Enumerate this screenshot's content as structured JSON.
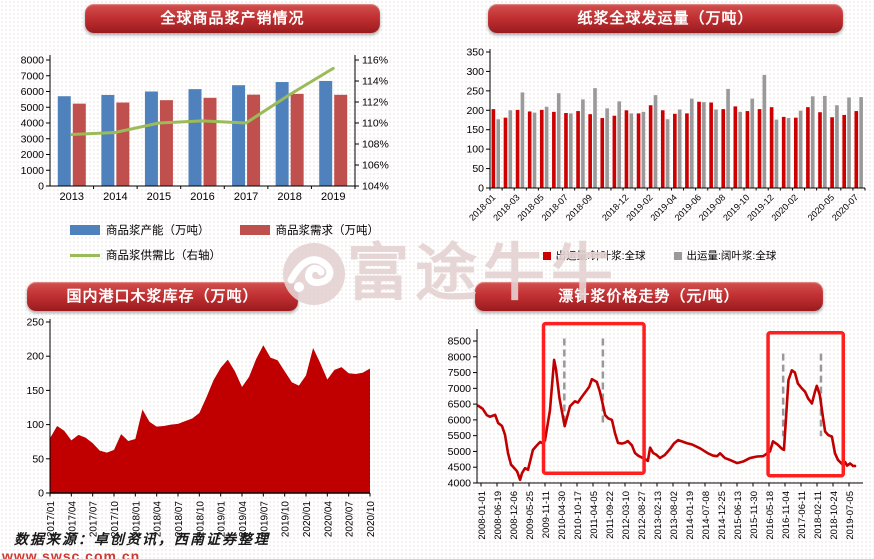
{
  "watermark": {
    "text": "富途牛牛"
  },
  "footer": {
    "source": "数据来源：卓创资讯，西南证券整理",
    "url": "www.swsc.com.cn"
  },
  "colors": {
    "banner_red": "#c23133",
    "bar_blue": "#4F81BD",
    "bar_dark_red": "#C0504D",
    "line_green": "#9BBB59",
    "bar_bright_red": "#CC0000",
    "bar_gray": "#9A9A9A",
    "area_red": "#C00000",
    "price_line_red": "#C00000",
    "highlight_box_red": "#FF1F1F",
    "dash_gray": "#999999"
  },
  "chart_data": [
    {
      "id": "global_pulp_supply_demand",
      "type": "bar",
      "title": "全球商品浆产销情况",
      "categories": [
        "2013",
        "2014",
        "2015",
        "2016",
        "2017",
        "2018",
        "2019"
      ],
      "series": [
        {
          "name": "商品浆产能（万吨）",
          "kind": "bar",
          "color": "#4F81BD",
          "values": [
            5700,
            5780,
            6000,
            6150,
            6400,
            6600,
            6670
          ]
        },
        {
          "name": "商品浆需求（万吨）",
          "kind": "bar",
          "color": "#C0504D",
          "values": [
            5230,
            5300,
            5450,
            5600,
            5800,
            5850,
            5790
          ]
        },
        {
          "name": "商品浆供需比（右轴）",
          "kind": "line",
          "color": "#9BBB59",
          "axis": "right",
          "values": [
            108.9,
            109.1,
            110.0,
            110.2,
            110.0,
            112.7,
            115.2
          ]
        }
      ],
      "y_left": {
        "min": 0,
        "max": 8000,
        "tick_labels": [
          "0",
          "1000",
          "2000",
          "3000",
          "4000",
          "5000",
          "6000",
          "7000",
          "8000"
        ]
      },
      "y_right": {
        "min": 104,
        "max": 116,
        "tick_labels": [
          "104%",
          "106%",
          "108%",
          "110%",
          "112%",
          "114%",
          "116%"
        ]
      },
      "grid": false,
      "legend_position": "bottom"
    },
    {
      "id": "pulp_global_shipments",
      "type": "bar",
      "title": "纸浆全球发运量（万吨）",
      "categories": [
        "2018-01",
        "2018-02",
        "2018-03",
        "2018-04",
        "2018-05",
        "2018-06",
        "2018-07",
        "2018-08",
        "2018-09",
        "2018-10",
        "2018-11",
        "2018-12",
        "2019-01",
        "2019-02",
        "2019-03",
        "2019-04",
        "2019-05",
        "2019-06",
        "2019-07",
        "2019-08",
        "2019-09",
        "2019-10",
        "2019-11",
        "2019-12",
        "2020-01",
        "2020-02",
        "2020-03",
        "2020-04",
        "2020-05",
        "2020-06",
        "2020-07"
      ],
      "series": [
        {
          "name": "出运量:针叶浆:全球",
          "color": "#CC0000",
          "values": [
            203,
            181,
            201,
            197,
            201,
            196,
            193,
            198,
            190,
            180,
            186,
            200,
            192,
            213,
            200,
            191,
            192,
            222,
            220,
            203,
            210,
            198,
            203,
            208,
            183,
            181,
            208,
            195,
            182,
            188,
            198
          ]
        },
        {
          "name": "出运量:阔叶浆:全球",
          "color": "#9A9A9A",
          "values": [
            177,
            200,
            246,
            194,
            209,
            244,
            192,
            228,
            257,
            205,
            223,
            192,
            196,
            239,
            177,
            202,
            230,
            221,
            202,
            255,
            196,
            230,
            291,
            176,
            180,
            199,
            236,
            237,
            213,
            233,
            234
          ]
        }
      ],
      "y": {
        "min": 0,
        "max": 350,
        "tick_labels": [
          "0",
          "50",
          "100",
          "150",
          "200",
          "250",
          "300",
          "350"
        ]
      },
      "x_tick_labels": [
        "2018-01",
        "2018-03",
        "2018-05",
        "2018-07",
        "2018-09",
        "2018-12",
        "2019-02",
        "2019-04",
        "2019-06",
        "2019-08",
        "2019-10",
        "2019-12",
        "2020-02",
        "2020-05",
        "2020-07"
      ],
      "x_tick_indices": [
        0,
        2,
        4,
        6,
        8,
        11,
        13,
        15,
        17,
        19,
        21,
        23,
        25,
        28,
        30
      ],
      "grid": false,
      "legend_position": "bottom"
    },
    {
      "id": "domestic_port_pulp_inventory",
      "type": "area",
      "title": "国内港口木浆库存（万吨）",
      "color": "#C00000",
      "categories": [
        "2017/01",
        "2017/02",
        "2017/03",
        "2017/04",
        "2017/05",
        "2017/06",
        "2017/07",
        "2017/08",
        "2017/09",
        "2017/10",
        "2017/11",
        "2017/12",
        "2018/01",
        "2018/02",
        "2018/03",
        "2018/04",
        "2018/05",
        "2018/06",
        "2018/07",
        "2018/08",
        "2018/09",
        "2018/10",
        "2018/11",
        "2018/12",
        "2019/01",
        "2019/02",
        "2019/03",
        "2019/04",
        "2019/05",
        "2019/06",
        "2019/07",
        "2019/08",
        "2019/09",
        "2019/10",
        "2019/11",
        "2019/12",
        "2020/01",
        "2020/02",
        "2020/03",
        "2020/04",
        "2020/05",
        "2020/06",
        "2020/07",
        "2020/08",
        "2020/09",
        "2020/10"
      ],
      "values": [
        80,
        98,
        91,
        77,
        85,
        81,
        73,
        62,
        59,
        63,
        86,
        76,
        79,
        122,
        104,
        97,
        98,
        100,
        101,
        105,
        109,
        117,
        140,
        165,
        183,
        195,
        178,
        155,
        170,
        196,
        216,
        198,
        194,
        178,
        162,
        157,
        172,
        212,
        190,
        166,
        180,
        184,
        175,
        174,
        176,
        182
      ],
      "y": {
        "min": 0,
        "max": 250,
        "tick_labels": [
          "0",
          "50",
          "100",
          "150",
          "200",
          "250"
        ]
      },
      "x_tick_labels": [
        "2017/01",
        "2017/04",
        "2017/07",
        "2017/10",
        "2018/01",
        "2018/04",
        "2018/07",
        "2018/10",
        "2019/01",
        "2019/04",
        "2019/07",
        "2019/10",
        "2020/01",
        "2020/04",
        "2020/07",
        "2020/10"
      ],
      "x_tick_every": 3,
      "grid": false
    },
    {
      "id": "bleached_softwood_pulp_price",
      "type": "line",
      "title": "漂针浆价格走势（元/吨）",
      "color": "#C00000",
      "x_axis_note": "x = percent position across 2008-01-01 to 2019-10",
      "points": [
        [
          0.3,
          6450
        ],
        [
          1.5,
          6350
        ],
        [
          2.6,
          6150
        ],
        [
          3.4,
          6100
        ],
        [
          4.8,
          6160
        ],
        [
          5.6,
          5900
        ],
        [
          6.6,
          5810
        ],
        [
          7.4,
          5530
        ],
        [
          8.2,
          4950
        ],
        [
          9,
          4580
        ],
        [
          9.5,
          4520
        ],
        [
          10.6,
          4370
        ],
        [
          11.4,
          4100
        ],
        [
          11.9,
          4310
        ],
        [
          12.7,
          4470
        ],
        [
          13.5,
          4420
        ],
        [
          14.8,
          5050
        ],
        [
          15.9,
          5200
        ],
        [
          16.7,
          5300
        ],
        [
          17.5,
          5250
        ],
        [
          18,
          5360
        ],
        [
          19.3,
          6300
        ],
        [
          20.4,
          7900
        ],
        [
          20.9,
          7600
        ],
        [
          21.8,
          6700
        ],
        [
          23.2,
          5800
        ],
        [
          24.6,
          6430
        ],
        [
          25.9,
          6590
        ],
        [
          26.7,
          6550
        ],
        [
          27.8,
          6740
        ],
        [
          29.1,
          6950
        ],
        [
          29.7,
          7050
        ],
        [
          30.4,
          7290
        ],
        [
          31.7,
          7200
        ],
        [
          32.5,
          6900
        ],
        [
          33.1,
          6590
        ],
        [
          33.9,
          6150
        ],
        [
          34.7,
          6050
        ],
        [
          35.7,
          6000
        ],
        [
          36.5,
          5580
        ],
        [
          37.3,
          5270
        ],
        [
          38.4,
          5250
        ],
        [
          39.2,
          5280
        ],
        [
          39.9,
          5330
        ],
        [
          41,
          5190
        ],
        [
          41.8,
          4950
        ],
        [
          42.6,
          4870
        ],
        [
          43.7,
          4800
        ],
        [
          44.4,
          4760
        ],
        [
          45.2,
          4700
        ],
        [
          45.8,
          5120
        ],
        [
          46.6,
          4950
        ],
        [
          47.4,
          4900
        ],
        [
          48.4,
          4790
        ],
        [
          49.7,
          4890
        ],
        [
          51.1,
          5080
        ],
        [
          52.1,
          5250
        ],
        [
          53.2,
          5360
        ],
        [
          54.2,
          5320
        ],
        [
          55.6,
          5260
        ],
        [
          56.9,
          5220
        ],
        [
          59,
          5100
        ],
        [
          61.1,
          4940
        ],
        [
          62.4,
          4870
        ],
        [
          63.5,
          4850
        ],
        [
          64.3,
          4940
        ],
        [
          65.6,
          4790
        ],
        [
          66.9,
          4730
        ],
        [
          68.8,
          4630
        ],
        [
          70.4,
          4680
        ],
        [
          72.2,
          4790
        ],
        [
          74.1,
          4840
        ],
        [
          75.7,
          4850
        ],
        [
          77.5,
          5000
        ],
        [
          78.3,
          5320
        ],
        [
          79.6,
          5210
        ],
        [
          80.7,
          5080
        ],
        [
          81.2,
          5050
        ],
        [
          82,
          6530
        ],
        [
          82.4,
          7260
        ],
        [
          83.3,
          7570
        ],
        [
          84.1,
          7500
        ],
        [
          84.9,
          7150
        ],
        [
          86,
          6990
        ],
        [
          86.8,
          6890
        ],
        [
          87.6,
          6680
        ],
        [
          88.6,
          6520
        ],
        [
          89.4,
          6890
        ],
        [
          89.9,
          7080
        ],
        [
          90.7,
          6780
        ],
        [
          91.5,
          6100
        ],
        [
          92.1,
          5630
        ],
        [
          92.9,
          5520
        ],
        [
          93.9,
          5470
        ],
        [
          94.7,
          4940
        ],
        [
          95.5,
          4730
        ],
        [
          96.6,
          4600
        ],
        [
          97.4,
          4660
        ],
        [
          97.9,
          4550
        ],
        [
          98.7,
          4620
        ],
        [
          99.5,
          4540
        ],
        [
          100,
          4540
        ]
      ],
      "y": {
        "min": 4000,
        "max": 8500,
        "tick_labels": [
          "4000",
          "4500",
          "5000",
          "5500",
          "6000",
          "6500",
          "7000",
          "7500",
          "8000",
          "8500"
        ]
      },
      "x_tick_labels": [
        "2008-01-01",
        "2008-06-19",
        "2008-12-06",
        "2009-05-25",
        "2009-11-11",
        "2010-04-30",
        "2010-10-17",
        "2011-04-05",
        "2011-09-22",
        "2012-03-10",
        "2012-08-27",
        "2013-02-13",
        "2013-08-02",
        "2014-01-19",
        "2014-07-08",
        "2014-12-25",
        "2015-06-13",
        "2015-11-30",
        "2016-05-18",
        "2016-11-04",
        "2017-06-11",
        "2018-02-11",
        "2018-10-24",
        "2019-07-05"
      ],
      "annotations": {
        "box_color": "#FF1F1F",
        "dash_color": "#999999",
        "boxes": [
          {
            "x1_pct": 17.6,
            "x2_pct": 44.2,
            "v_top": 9050,
            "v_bottom": 4310
          },
          {
            "x1_pct": 77.0,
            "x2_pct": 96.9,
            "v_top": 8760,
            "v_bottom": 4230
          }
        ],
        "dashed_lines": [
          {
            "x_pct": 23.1,
            "v_top": 8580,
            "v_bottom": 5840
          },
          {
            "x_pct": 33.3,
            "v_top": 8580,
            "v_bottom": 5900
          },
          {
            "x_pct": 81.0,
            "v_top": 8100,
            "v_bottom": 5480
          },
          {
            "x_pct": 91.0,
            "v_top": 8100,
            "v_bottom": 5480
          }
        ]
      },
      "grid": false
    }
  ]
}
